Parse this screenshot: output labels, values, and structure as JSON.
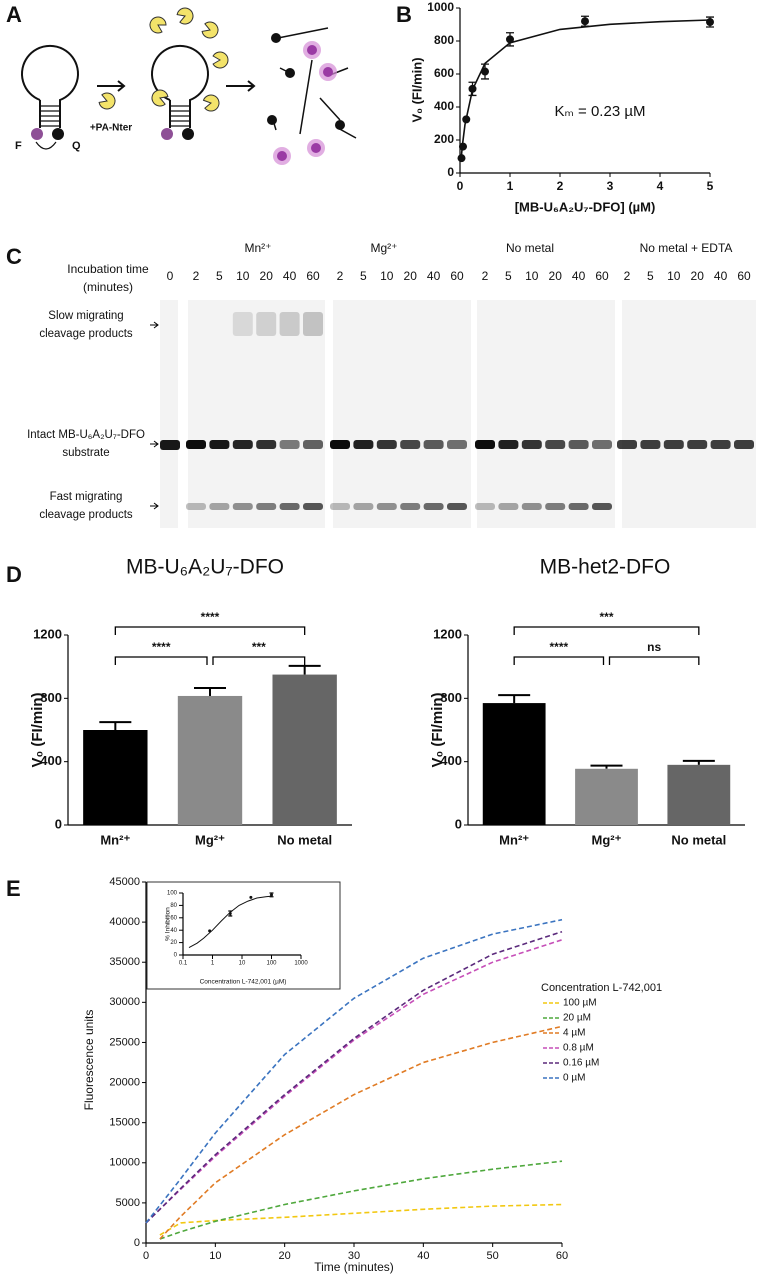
{
  "panel_labels": [
    "A",
    "B",
    "C",
    "D",
    "E"
  ],
  "diagram": {
    "reagent": "+PA-Nter",
    "fluorophore": "F",
    "quencher": "Q"
  },
  "gel": {
    "time_header": [
      "Incubation time",
      "(minutes)"
    ],
    "zero_time": "0",
    "conditions": [
      {
        "name": "Mn²⁺",
        "times": [
          "2",
          "5",
          "10",
          "20",
          "40",
          "60"
        ]
      },
      {
        "name": "Mg²⁺",
        "times": [
          "2",
          "5",
          "10",
          "20",
          "40",
          "60"
        ]
      },
      {
        "name": "No metal",
        "times": [
          "2",
          "5",
          "10",
          "20",
          "40",
          "60"
        ]
      },
      {
        "name": "No metal + EDTA",
        "times": [
          "2",
          "5",
          "10",
          "20",
          "40",
          "60"
        ]
      }
    ],
    "slow_label": [
      "Slow migrating",
      "cleavage products"
    ],
    "intact_label": [
      "Intact MB-U₆A₂U₇-DFO",
      "substrate"
    ],
    "fast_label": [
      "Fast migrating",
      "cleavage products"
    ]
  },
  "chart_data": [
    {
      "type": "scatter",
      "x_label": "[MB-U₆A₂U₇-DFO] (µM)",
      "y_label": "V₀ (FI/min)",
      "annotation": "Kₘ = 0.23 µM",
      "color": "#111111",
      "x": [
        0.03,
        0.06,
        0.125,
        0.25,
        0.5,
        1,
        2.5,
        5
      ],
      "values": [
        90,
        160,
        325,
        510,
        615,
        810,
        920,
        915
      ],
      "errors": [
        0,
        0,
        0,
        40,
        45,
        40,
        30,
        30
      ],
      "fit": {
        "x": [
          0.02,
          0.05,
          0.1,
          0.25,
          0.5,
          1,
          2,
          3,
          4,
          5
        ],
        "values": [
          78,
          173,
          294,
          505,
          664,
          789,
          870,
          901,
          917,
          927
        ]
      },
      "xlim": [
        0,
        5
      ],
      "xticks": [
        0,
        1,
        2,
        3,
        4,
        5
      ],
      "ylim": [
        0,
        1000
      ],
      "yticks": [
        0,
        200,
        400,
        600,
        800,
        1000
      ]
    },
    {
      "type": "bar",
      "title": "MB-U₆A₂U₇-DFO",
      "y_label": "V₀ (FI/min)",
      "categories": [
        "Mn²⁺",
        "Mg²⁺",
        "No metal"
      ],
      "values": [
        600,
        815,
        950
      ],
      "errors": [
        50,
        50,
        55
      ],
      "colors": [
        "#000000",
        "#8a8a8a",
        "#666666"
      ],
      "ylim": [
        0,
        1200
      ],
      "yticks": [
        0,
        400,
        800,
        1200
      ],
      "brackets": [
        {
          "from": 0,
          "to": 1,
          "label": "****"
        },
        {
          "from": 1,
          "to": 2,
          "label": "***"
        },
        {
          "from": 0,
          "to": 2,
          "label": "****"
        }
      ]
    },
    {
      "type": "bar",
      "title": "MB-het2-DFO",
      "y_label": "V₀ (FI/min)",
      "categories": [
        "Mn²⁺",
        "Mg²⁺",
        "No metal"
      ],
      "values": [
        770,
        355,
        380
      ],
      "errors": [
        50,
        20,
        25
      ],
      "colors": [
        "#000000",
        "#8a8a8a",
        "#666666"
      ],
      "ylim": [
        0,
        1200
      ],
      "yticks": [
        0,
        400,
        800,
        1200
      ],
      "brackets": [
        {
          "from": 0,
          "to": 1,
          "label": "****"
        },
        {
          "from": 1,
          "to": 2,
          "label": "ns"
        },
        {
          "from": 0,
          "to": 2,
          "label": "***"
        }
      ]
    },
    {
      "type": "line",
      "x_label": "Time (minutes)",
      "y_label": "Fluorescence units",
      "legend_title": "Concentration L-742,001",
      "x": [
        0,
        2,
        5,
        10,
        20,
        30,
        40,
        50,
        60
      ],
      "series": [
        {
          "name": "100 µM",
          "color": "#f2c811",
          "values": [
            null,
            1000,
            2500,
            2800,
            3200,
            3700,
            4200,
            4600,
            4800
          ]
        },
        {
          "name": "20 µM",
          "color": "#4fa83d",
          "values": [
            null,
            500,
            1400,
            2700,
            4800,
            6500,
            8000,
            9200,
            10200
          ]
        },
        {
          "name": "4 µM",
          "color": "#e07b24",
          "values": [
            null,
            500,
            3300,
            7500,
            13500,
            18500,
            22500,
            25000,
            27000
          ]
        },
        {
          "name": "0.8 µM",
          "color": "#c64fb8",
          "values": [
            2500,
            4200,
            6700,
            10800,
            18300,
            25300,
            31000,
            35000,
            37800
          ]
        },
        {
          "name": "0.16 µM",
          "color": "#5b2a7c",
          "values": [
            2500,
            4200,
            6800,
            11000,
            18500,
            25500,
            31500,
            36000,
            38800
          ]
        },
        {
          "name": "0 µM",
          "color": "#3b74c0",
          "values": [
            2500,
            4700,
            8000,
            13700,
            23500,
            30500,
            35500,
            38500,
            40300
          ]
        }
      ],
      "xlim": [
        0,
        60
      ],
      "xticks": [
        0,
        10,
        20,
        30,
        40,
        50,
        60
      ],
      "ylim": [
        0,
        45000
      ],
      "yticks": [
        0,
        5000,
        10000,
        15000,
        20000,
        25000,
        30000,
        35000,
        40000,
        45000
      ]
    },
    {
      "type": "scatter",
      "log_x": true,
      "x_label": "Concentration L-742,001 (µM)",
      "y_label": "% Inhibition",
      "color": "#111111",
      "x": [
        0.8,
        4,
        20,
        100
      ],
      "values": [
        39,
        67,
        93,
        97
      ],
      "errors": [
        0,
        4,
        0,
        3
      ],
      "fit": {
        "x": [
          0.16,
          0.3,
          0.5,
          1,
          2,
          4,
          8,
          16,
          32,
          64,
          100
        ],
        "values": [
          12,
          19,
          27,
          40,
          55,
          69,
          80,
          87,
          92,
          94,
          95
        ]
      },
      "xlim": [
        0.1,
        1000
      ],
      "xticks": [
        0.1,
        1,
        10,
        100,
        1000
      ],
      "ylim": [
        0,
        100
      ],
      "yticks": [
        0,
        20,
        40,
        60,
        80,
        100
      ]
    }
  ]
}
